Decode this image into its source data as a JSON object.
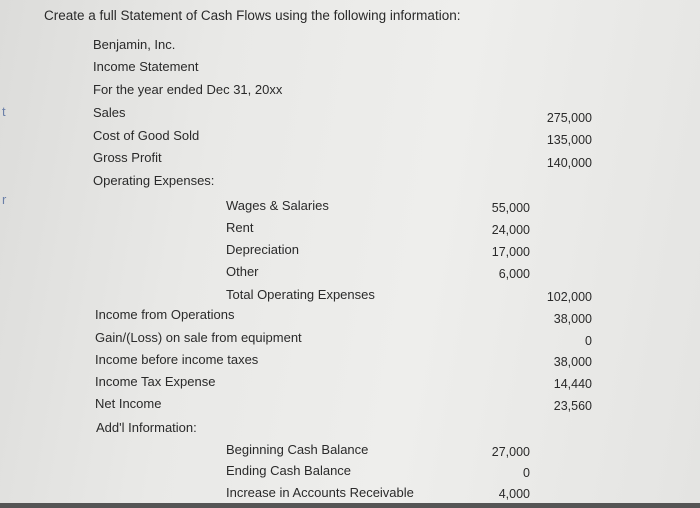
{
  "prompt": "Create a full Statement of Cash Flows using the following information:",
  "side_letters": [
    "t",
    "r"
  ],
  "header": {
    "company": "Benjamin, Inc.",
    "statement": "Income Statement",
    "period": "For the year ended Dec 31, 20xx"
  },
  "income": {
    "sales": {
      "label": "Sales",
      "value": "275,000"
    },
    "cogs": {
      "label": "Cost of Good Sold",
      "value": "135,000"
    },
    "gross_profit": {
      "label": "Gross Profit",
      "value": "140,000"
    },
    "opex_heading": "Operating Expenses:",
    "wages": {
      "label": "Wages & Salaries",
      "value": "55,000"
    },
    "rent": {
      "label": "Rent",
      "value": "24,000"
    },
    "depreciation": {
      "label": "Depreciation",
      "value": "17,000"
    },
    "other": {
      "label": "Other",
      "value": "6,000"
    },
    "total_opex": {
      "label": "Total Operating Expenses",
      "value": "102,000"
    },
    "income_ops": {
      "label": "Income from Operations",
      "value": "38,000"
    },
    "gain_loss": {
      "label": "Gain/(Loss) on sale from equipment",
      "value": "0"
    },
    "pretax": {
      "label": "Income before income taxes",
      "value": "38,000"
    },
    "tax": {
      "label": "Income Tax Expense",
      "value": "14,440"
    },
    "net_income": {
      "label": "Net Income",
      "value": "23,560"
    }
  },
  "additional": {
    "heading": "Add'l Information:",
    "beginning_cash": {
      "label": "Beginning Cash Balance",
      "value": "27,000"
    },
    "ending_cash": {
      "label": "Ending Cash Balance",
      "value": "0"
    },
    "ar_increase": {
      "label": "Increase in Accounts Receivable",
      "value": "4,000"
    }
  }
}
